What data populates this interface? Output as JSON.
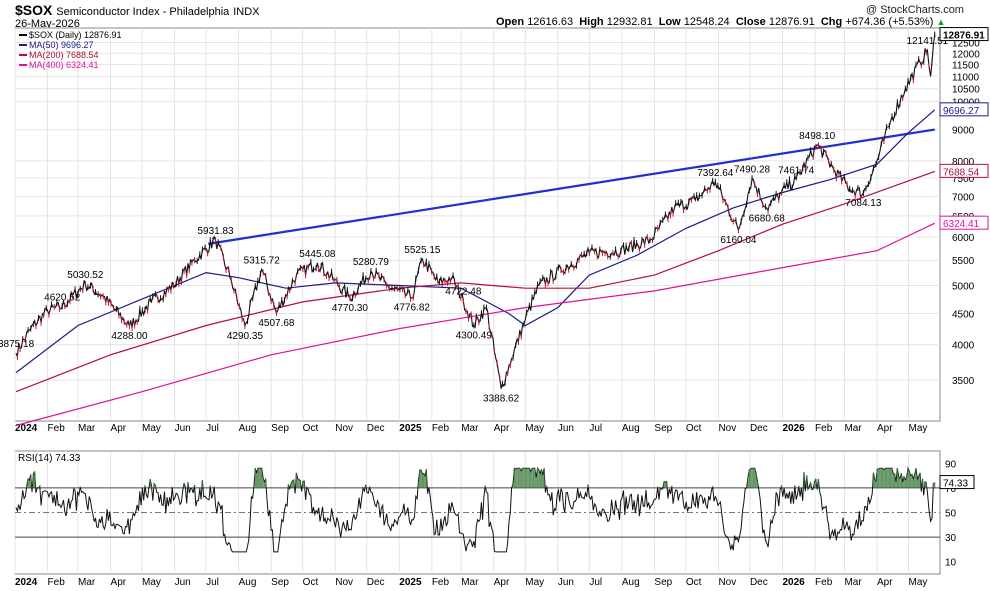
{
  "header": {
    "symbol": "$SOX",
    "name": "Semiconductor Index - Philadelphia",
    "exchange": "INDX",
    "date": "26-May-2026",
    "watermark": "@ StockCharts.com",
    "ohlc": {
      "open_label": "Open",
      "open": "12616.63",
      "high_label": "High",
      "high": "12932.81",
      "low_label": "Low",
      "low": "12548.24",
      "close_label": "Close",
      "close": "12876.91",
      "chg_label": "Chg",
      "chg": "+674.36 (+5.53%)"
    },
    "chg_arrow": "▲"
  },
  "legend": [
    {
      "label": "$SOX (Daily) 12876.91",
      "color": "#000000"
    },
    {
      "label": "MA(50) 9696.27",
      "color": "#1a1a8c"
    },
    {
      "label": "MA(200) 7688.54",
      "color": "#b0103a"
    },
    {
      "label": "MA(400) 6324.41",
      "color": "#e0119e"
    }
  ],
  "rsi": {
    "label": "RSI(14) 74.33",
    "value": 74.33,
    "value_label": "74.33",
    "levels": [
      70,
      50,
      30
    ],
    "ticks": [
      "90",
      "70",
      "50",
      "30",
      "10"
    ],
    "ylim": [
      0,
      100
    ]
  },
  "chart_data": {
    "type": "line",
    "title": "$SOX Semiconductor Index - Philadelphia INDX",
    "y_scale": "log",
    "ylim": [
      3000,
      13200
    ],
    "grid": true,
    "legend_position": "top-left",
    "y_ticks": [
      "12500",
      "12000",
      "11500",
      "11000",
      "10500",
      "10000",
      "9000",
      "8000",
      "7500",
      "7000",
      "6500",
      "6000",
      "5500",
      "5000",
      "4500",
      "4000",
      "3500"
    ],
    "x_ticks": [
      "2024",
      "Feb",
      "Mar",
      "Apr",
      "May",
      "Jun",
      "Jul",
      "Aug",
      "Sep",
      "Oct",
      "Nov",
      "Dec",
      "2025",
      "Feb",
      "Mar",
      "Apr",
      "May",
      "Jun",
      "Jul",
      "Aug",
      "Sep",
      "Oct",
      "Nov",
      "Dec",
      "2026",
      "Feb",
      "Mar",
      "Apr",
      "May"
    ],
    "price_points": [
      [
        "2024-01-02",
        3875.18
      ],
      [
        "2024-01-16",
        4250
      ],
      [
        "2024-02-01",
        4550
      ],
      [
        "2024-02-15",
        4620.52
      ],
      [
        "2024-03-08",
        5030.52
      ],
      [
        "2024-03-25",
        4800
      ],
      [
        "2024-04-19",
        4288.0
      ],
      [
        "2024-05-10",
        4700
      ],
      [
        "2024-05-31",
        5000
      ],
      [
        "2024-06-20",
        5500
      ],
      [
        "2024-07-10",
        5931.83
      ],
      [
        "2024-07-25",
        5100
      ],
      [
        "2024-08-07",
        4290.35
      ],
      [
        "2024-08-23",
        5315.72
      ],
      [
        "2024-09-06",
        4507.68
      ],
      [
        "2024-09-25",
        5200
      ],
      [
        "2024-10-15",
        5445.08
      ],
      [
        "2024-10-31",
        5100
      ],
      [
        "2024-11-15",
        4770.3
      ],
      [
        "2024-12-05",
        5280.79
      ],
      [
        "2024-12-20",
        5000
      ],
      [
        "2025-01-13",
        4776.82
      ],
      [
        "2025-01-23",
        5525.15
      ],
      [
        "2025-02-07",
        5050
      ],
      [
        "2025-02-20",
        5150
      ],
      [
        "2025-03-03",
        4722.48
      ],
      [
        "2025-03-13",
        4300.49
      ],
      [
        "2025-03-25",
        4600
      ],
      [
        "2025-04-08",
        3388.62
      ],
      [
        "2025-04-18",
        3800
      ],
      [
        "2025-05-01",
        4400
      ],
      [
        "2025-05-14",
        5000
      ],
      [
        "2025-06-04",
        5300
      ],
      [
        "2025-07-01",
        5650
      ],
      [
        "2025-07-31",
        5700
      ],
      [
        "2025-08-29",
        5950
      ],
      [
        "2025-09-20",
        6700
      ],
      [
        "2025-10-10",
        6900
      ],
      [
        "2025-10-29",
        7392.64
      ],
      [
        "2025-11-20",
        6160.04
      ],
      [
        "2025-12-03",
        7490.28
      ],
      [
        "2025-12-17",
        6680.68
      ],
      [
        "2025-12-31",
        7100
      ],
      [
        "2026-01-14",
        7461.74
      ],
      [
        "2026-02-03",
        8498.1
      ],
      [
        "2026-02-20",
        7700
      ],
      [
        "2026-03-06",
        7200
      ],
      [
        "2026-03-19",
        7084.13
      ],
      [
        "2026-03-31",
        7900
      ],
      [
        "2026-04-14",
        9300
      ],
      [
        "2026-04-28",
        10500
      ],
      [
        "2026-05-12",
        11600
      ],
      [
        "2026-05-19",
        12141.51
      ],
      [
        "2026-05-22",
        11000
      ],
      [
        "2026-05-26",
        12876.91
      ]
    ],
    "annotations": [
      {
        "x": "2024-01-02",
        "y": 3875.18,
        "text": "3875.18"
      },
      {
        "x": "2024-02-15",
        "y": 4620.52,
        "text": "4620.52"
      },
      {
        "x": "2024-03-08",
        "y": 5030.52,
        "text": "5030.52"
      },
      {
        "x": "2024-04-19",
        "y": 4288.0,
        "text": "4288.00"
      },
      {
        "x": "2024-07-10",
        "y": 5931.83,
        "text": "5931.83"
      },
      {
        "x": "2024-08-07",
        "y": 4290.35,
        "text": "4290.35"
      },
      {
        "x": "2024-08-23",
        "y": 5315.72,
        "text": "5315.72"
      },
      {
        "x": "2024-09-06",
        "y": 4507.68,
        "text": "4507.68"
      },
      {
        "x": "2024-10-15",
        "y": 5445.08,
        "text": "5445.08"
      },
      {
        "x": "2024-11-15",
        "y": 4770.3,
        "text": "4770.30"
      },
      {
        "x": "2024-12-05",
        "y": 5280.79,
        "text": "5280.79"
      },
      {
        "x": "2025-01-13",
        "y": 4776.82,
        "text": "4776.82"
      },
      {
        "x": "2025-01-23",
        "y": 5525.15,
        "text": "5525.15"
      },
      {
        "x": "2025-03-03",
        "y": 4722.48,
        "text": "4722.48"
      },
      {
        "x": "2025-03-13",
        "y": 4300.49,
        "text": "4300.49"
      },
      {
        "x": "2025-04-08",
        "y": 3388.62,
        "text": "3388.62"
      },
      {
        "x": "2025-10-29",
        "y": 7392.64,
        "text": "7392.64"
      },
      {
        "x": "2025-11-20",
        "y": 6160.04,
        "text": "6160.04"
      },
      {
        "x": "2025-12-03",
        "y": 7490.28,
        "text": "7490.28"
      },
      {
        "x": "2025-12-17",
        "y": 6680.68,
        "text": "6680.68"
      },
      {
        "x": "2026-01-14",
        "y": 7461.74,
        "text": "7461.74"
      },
      {
        "x": "2026-02-03",
        "y": 8498.1,
        "text": "8498.10"
      },
      {
        "x": "2026-03-19",
        "y": 7084.13,
        "text": "7084.13"
      },
      {
        "x": "2026-05-19",
        "y": 12141.51,
        "text": "12141.51"
      }
    ],
    "series": [
      {
        "name": "MA(50) 9696.27",
        "color": "#1a1a8c",
        "points": [
          [
            "2024-01-02",
            3600
          ],
          [
            "2024-03-01",
            4300
          ],
          [
            "2024-05-01",
            4750
          ],
          [
            "2024-07-01",
            5250
          ],
          [
            "2024-08-01",
            5150
          ],
          [
            "2024-09-15",
            4950
          ],
          [
            "2024-11-01",
            5050
          ],
          [
            "2025-01-01",
            5000
          ],
          [
            "2025-03-01",
            4950
          ],
          [
            "2025-04-15",
            4500
          ],
          [
            "2025-05-01",
            4300
          ],
          [
            "2025-06-01",
            4600
          ],
          [
            "2025-07-01",
            5200
          ],
          [
            "2025-08-15",
            5600
          ],
          [
            "2025-10-01",
            6200
          ],
          [
            "2025-11-15",
            6700
          ],
          [
            "2026-01-01",
            7100
          ],
          [
            "2026-02-15",
            7450
          ],
          [
            "2026-04-01",
            7900
          ],
          [
            "2026-05-01",
            8900
          ],
          [
            "2026-05-26",
            9696.27
          ]
        ]
      },
      {
        "name": "MA(200) 7688.54",
        "color": "#b0103a",
        "points": [
          [
            "2024-01-02",
            3350
          ],
          [
            "2024-04-01",
            3850
          ],
          [
            "2024-07-01",
            4300
          ],
          [
            "2024-10-01",
            4700
          ],
          [
            "2025-01-01",
            4950
          ],
          [
            "2025-03-01",
            5050
          ],
          [
            "2025-05-01",
            4950
          ],
          [
            "2025-07-01",
            4950
          ],
          [
            "2025-09-01",
            5200
          ],
          [
            "2025-11-01",
            5700
          ],
          [
            "2026-01-01",
            6300
          ],
          [
            "2026-03-01",
            6800
          ],
          [
            "2026-05-26",
            7688.54
          ]
        ]
      },
      {
        "name": "MA(400) 6324.41",
        "color": "#e0119e",
        "points": [
          [
            "2024-01-02",
            2950
          ],
          [
            "2024-05-01",
            3350
          ],
          [
            "2024-09-01",
            3850
          ],
          [
            "2025-01-01",
            4250
          ],
          [
            "2025-05-01",
            4600
          ],
          [
            "2025-09-01",
            4900
          ],
          [
            "2026-01-01",
            5350
          ],
          [
            "2026-04-01",
            5700
          ],
          [
            "2026-05-26",
            6324.41
          ]
        ]
      }
    ],
    "trendline": {
      "color": "#1f2fd0",
      "points": [
        [
          "2024-07-03",
          5850
        ],
        [
          "2026-05-26",
          9000
        ]
      ]
    },
    "last_value_tags": [
      {
        "text": "12876.91",
        "y": 12876.91,
        "color": "#000000",
        "filled": true
      },
      {
        "text": "9696.27",
        "y": 9696.27,
        "color": "#1a1a8c"
      },
      {
        "text": "7688.54",
        "y": 7688.54,
        "color": "#b0103a"
      },
      {
        "text": "6324.41",
        "y": 6324.41,
        "color": "#e0119e"
      }
    ]
  }
}
